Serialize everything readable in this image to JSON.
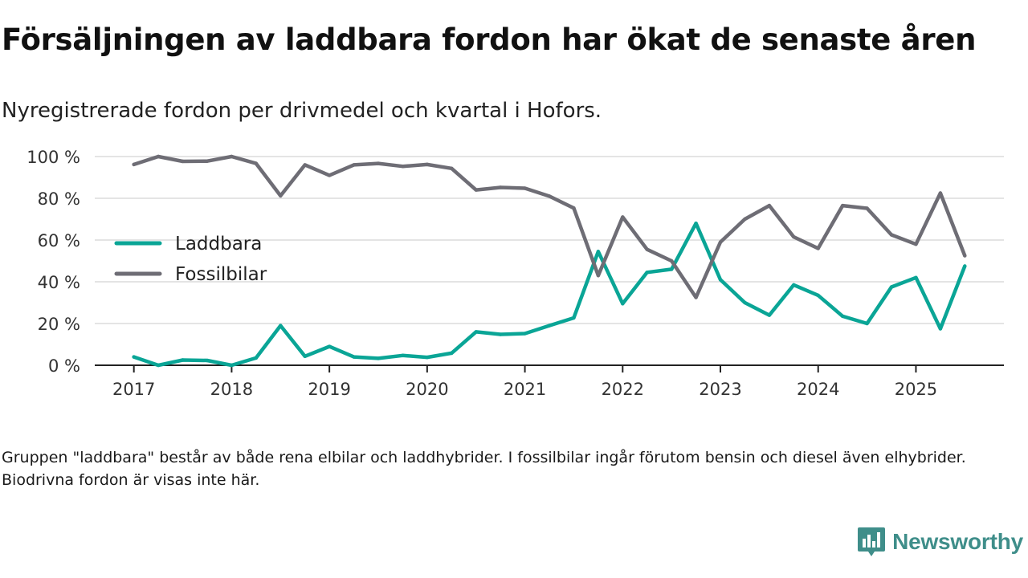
{
  "header": {
    "title": "Försäljningen av laddbara fordon har ökat de senaste åren",
    "subtitle": "Nyregistrerade fordon per drivmedel och kvartal i Hofors."
  },
  "footnote": "Gruppen \"laddbara\" består av både rena elbilar och laddhybrider. I fossilbilar ingår förutom bensin och diesel även elhybrider. Biodrivna fordon är visas inte här.",
  "brand": {
    "name": "Newsworthy",
    "color": "#3f8e8a"
  },
  "chart_data": {
    "type": "line",
    "title": "Försäljningen av laddbara fordon har ökat de senaste åren",
    "subtitle": "Nyregistrerade fordon per drivmedel och kvartal i Hofors.",
    "xlabel": "",
    "ylabel": "",
    "x": [
      2017.0,
      2017.25,
      2017.5,
      2017.75,
      2018.0,
      2018.25,
      2018.5,
      2018.75,
      2019.0,
      2019.25,
      2019.5,
      2019.75,
      2020.0,
      2020.25,
      2020.5,
      2020.75,
      2021.0,
      2021.25,
      2021.5,
      2021.75,
      2022.0,
      2022.25,
      2022.5,
      2022.75,
      2023.0,
      2023.25,
      2023.5,
      2023.75,
      2024.0,
      2024.25,
      2024.5,
      2024.75,
      2025.0,
      2025.25,
      2025.5
    ],
    "x_ticks": [
      2017,
      2018,
      2019,
      2020,
      2021,
      2022,
      2023,
      2024,
      2025
    ],
    "x_tick_labels": [
      "2017",
      "2018",
      "2019",
      "2020",
      "2021",
      "2022",
      "2023",
      "2024",
      "2025"
    ],
    "xlim": [
      2016.6,
      2025.9
    ],
    "ylim": [
      0,
      100
    ],
    "y_ticks": [
      0,
      20,
      40,
      60,
      80,
      100
    ],
    "y_tick_labels": [
      "0 %",
      "20 %",
      "40 %",
      "60 %",
      "80 %",
      "100 %"
    ],
    "grid": true,
    "legend_position": "left-middle",
    "series": [
      {
        "name": "Laddbara",
        "color": "#0aa596",
        "values": [
          4,
          0,
          2.5,
          2.3,
          0,
          3.5,
          19,
          4.3,
          9,
          4,
          3.3,
          4.7,
          3.8,
          5.8,
          16,
          14.8,
          15.2,
          19,
          22.7,
          54.5,
          29.5,
          44.5,
          46,
          68,
          41,
          30,
          24,
          38.5,
          33.5,
          23.5,
          20,
          37.5,
          42,
          17.5,
          47.5
        ]
      },
      {
        "name": "Fossilbilar",
        "color": "#6e6d75",
        "values": [
          96.2,
          100,
          97.7,
          97.8,
          100,
          96.7,
          81.2,
          96,
          91,
          96,
          96.7,
          95.3,
          96.2,
          94.3,
          84,
          85.2,
          84.8,
          81,
          75.3,
          43,
          71,
          55.5,
          50,
          32.5,
          59,
          70,
          76.5,
          61.5,
          56,
          76.5,
          75.2,
          62.5,
          58,
          82.5,
          52.5
        ]
      }
    ]
  }
}
